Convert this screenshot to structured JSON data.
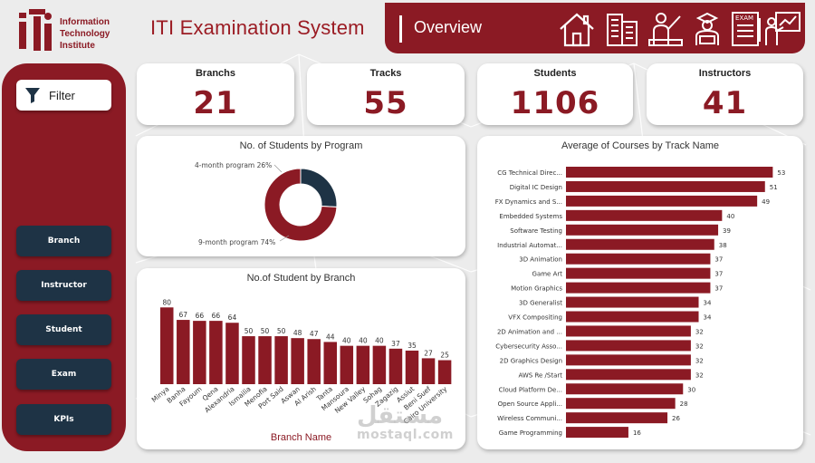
{
  "logo": {
    "line1": "Information",
    "line2": "Technology",
    "line3": "Institute"
  },
  "app_title": "ITI Examination System",
  "overview_title": "Overview",
  "nav_icons": [
    "home-icon",
    "building-icon",
    "instructor-icon",
    "student-icon",
    "exam-icon",
    "presentation-icon"
  ],
  "sidebar": {
    "filter_label": "Filter",
    "buttons": [
      "Branch",
      "Instructor",
      "Student",
      "Exam",
      "KPIs"
    ]
  },
  "kpis": [
    {
      "label": "Branchs",
      "value": "21"
    },
    {
      "label": "Tracks",
      "value": "55"
    },
    {
      "label": "Students",
      "value": "1106"
    },
    {
      "label": "Instructors",
      "value": "41"
    }
  ],
  "colors": {
    "accent": "#8b1a24",
    "dark": "#1e3345",
    "bar": "#8b1a24"
  },
  "chart_data": [
    {
      "type": "pie",
      "title": "No. of Students by Program",
      "slices": [
        {
          "label": "4-month program",
          "percent": 26,
          "color": "#1e3345"
        },
        {
          "label": "9-month program",
          "percent": 74,
          "color": "#8b1a24"
        }
      ],
      "slice_labels": [
        "4-month program 26%",
        "9-month program 74%"
      ]
    },
    {
      "type": "bar",
      "title": "No.of Student by Branch",
      "xlabel": "Branch Name",
      "categories": [
        "Minya",
        "Banha",
        "Fayoum",
        "Qena",
        "Alexandria",
        "Ismailia",
        "Menofia",
        "Port Said",
        "Aswan",
        "Al Arish",
        "Tanta",
        "Mansoura",
        "New Valley",
        "Sohag",
        "Zagazig",
        "Assiut",
        "Beni Suef",
        "Cairo University"
      ],
      "values": [
        80,
        67,
        66,
        66,
        64,
        50,
        50,
        50,
        48,
        47,
        44,
        40,
        40,
        40,
        37,
        35,
        27,
        25
      ],
      "ylim": [
        0,
        85
      ]
    },
    {
      "type": "bar",
      "orientation": "horizontal",
      "title": "Average of Courses by Track Name",
      "categories": [
        "CG Technical Direc...",
        "Digital IC Design",
        "FX Dynamics and S...",
        "Embedded Systems",
        "Software Testing",
        "Industrial Automat...",
        "3D Animation",
        "Game Art",
        "Motion Graphics",
        "3D Generalist",
        "VFX Compositing",
        "2D Animation and ...",
        "Cybersecurity Asso...",
        "2D Graphics Design",
        "AWS Re /Start",
        "Cloud Platform De...",
        "Open Source Appli...",
        "Wireless Communi...",
        "Game Programming"
      ],
      "values": [
        53,
        51,
        49,
        40,
        39,
        38,
        37,
        37,
        37,
        34,
        34,
        32,
        32,
        32,
        32,
        30,
        28,
        26,
        16
      ],
      "xlim": [
        0,
        55
      ]
    }
  ],
  "watermark": {
    "arabic": "مستقل",
    "latin": "mostaql.com"
  }
}
